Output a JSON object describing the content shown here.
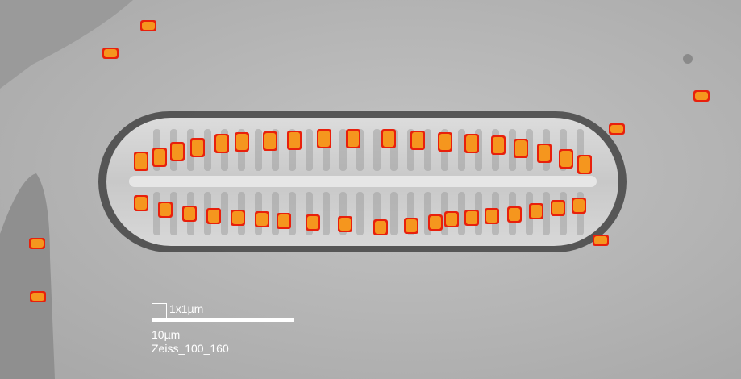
{
  "image": {
    "subject": "diatom",
    "overlay_colors": {
      "fill": "#f5961e",
      "edge": "#e8200c"
    }
  },
  "scale": {
    "unit_box_label": "1x1µm",
    "bar_label": "10µm",
    "objective_label": "Zeiss_100_160"
  }
}
